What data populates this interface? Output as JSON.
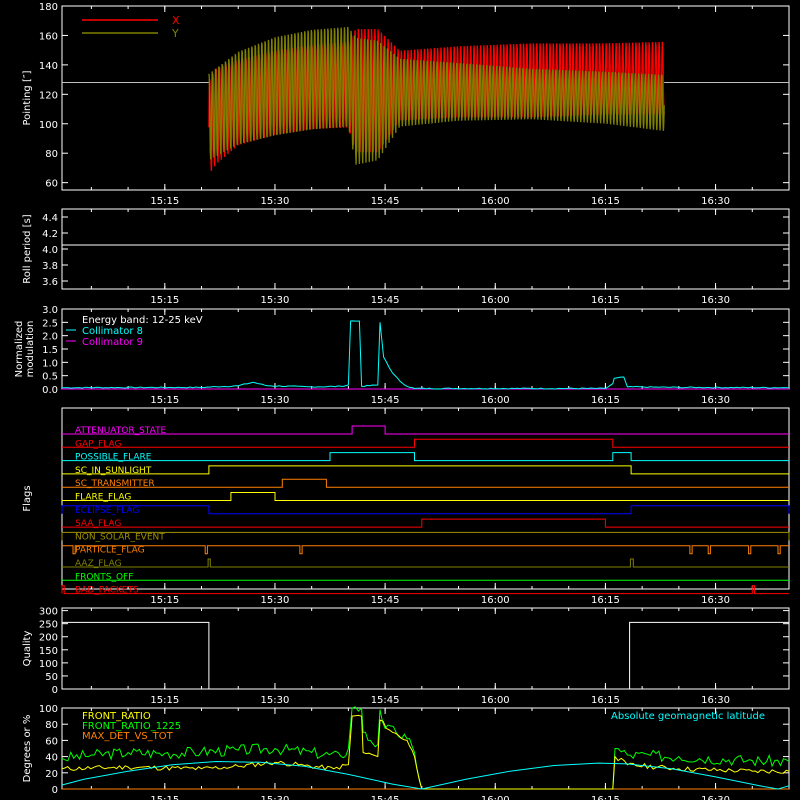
{
  "time_ticks": [
    "15:15",
    "15:30",
    "15:45",
    "16:00",
    "16:15",
    "16:30"
  ],
  "time_tick_values": [
    915,
    930,
    945,
    960,
    975,
    990
  ],
  "x_range": [
    901,
    1000
  ],
  "colors": {
    "bg": "#000000",
    "axis": "#ffffff",
    "red": "#ff0000",
    "olive": "#808000",
    "cyan": "#00ffff",
    "magenta": "#ff00ff",
    "yellow": "#ffff00",
    "green": "#00ff00",
    "orange": "#ff8000",
    "blue": "#0000ff",
    "olivegold": "#a09000"
  },
  "chart_data": [
    {
      "type": "line",
      "ylabel": "Pointing [″]",
      "ylim": [
        55,
        180
      ],
      "yticks": [
        60,
        80,
        100,
        120,
        140,
        160,
        180
      ],
      "legend": [
        {
          "name": "X",
          "color": "#ff0000"
        },
        {
          "name": "Y",
          "color": "#808000"
        }
      ],
      "reference_level": 128,
      "active_range": [
        921,
        983
      ],
      "series": [
        {
          "name": "X",
          "upper": [
            [
              921,
              130
            ],
            [
              922,
              138
            ],
            [
              925,
              144
            ],
            [
              930,
              150
            ],
            [
              935,
              154
            ],
            [
              940,
              156
            ],
            [
              941,
              165
            ],
            [
              944,
              165
            ],
            [
              947,
              150
            ],
            [
              955,
              153
            ],
            [
              965,
              155
            ],
            [
              975,
              155
            ],
            [
              983,
              156
            ]
          ],
          "lower": [
            [
              921,
              65
            ],
            [
              922,
              72
            ],
            [
              925,
              85
            ],
            [
              930,
              92
            ],
            [
              935,
              96
            ],
            [
              940,
              97
            ],
            [
              941,
              80
            ],
            [
              944,
              80
            ],
            [
              947,
              102
            ],
            [
              955,
              104
            ],
            [
              965,
              104
            ],
            [
              975,
              106
            ],
            [
              983,
              106
            ]
          ]
        },
        {
          "name": "Y",
          "upper": [
            [
              921,
              135
            ],
            [
              925,
              150
            ],
            [
              930,
              160
            ],
            [
              935,
              165
            ],
            [
              940,
              167
            ],
            [
              941,
              160
            ],
            [
              944,
              158
            ],
            [
              947,
              145
            ],
            [
              955,
              142
            ],
            [
              965,
              138
            ],
            [
              975,
              136
            ],
            [
              983,
              134
            ]
          ],
          "lower": [
            [
              921,
              75
            ],
            [
              925,
              86
            ],
            [
              930,
              92
            ],
            [
              935,
              96
            ],
            [
              940,
              98
            ],
            [
              941,
              72
            ],
            [
              944,
              75
            ],
            [
              947,
              98
            ],
            [
              955,
              102
            ],
            [
              965,
              103
            ],
            [
              975,
              100
            ],
            [
              983,
              95
            ]
          ]
        }
      ]
    },
    {
      "type": "line",
      "ylabel": "Roll period [s]",
      "ylim": [
        3.5,
        4.5
      ],
      "yticks": [
        3.6,
        3.8,
        4.0,
        4.2,
        4.4
      ],
      "series": [
        {
          "name": "",
          "points": [
            [
              901,
              4.05
            ],
            [
              1000,
              4.05
            ]
          ]
        }
      ]
    },
    {
      "type": "line",
      "ylabel": "Normalized modulation",
      "ylabel_lines": [
        "Normalized",
        "modulation"
      ],
      "ylim": [
        0,
        3.0
      ],
      "yticks": [
        0.0,
        0.5,
        1.0,
        1.5,
        2.0,
        2.5,
        3.0
      ],
      "legend": [
        {
          "name": "Energy band: 12-25 keV",
          "color": "#ffffff"
        },
        {
          "name": "Collimator 8",
          "color": "#00ffff"
        },
        {
          "name": "Collimator 9",
          "color": "#ff00ff"
        }
      ],
      "series": [
        {
          "name": "Collimator 8",
          "points": [
            [
              901,
              0.05
            ],
            [
              920,
              0.06
            ],
            [
              925,
              0.12
            ],
            [
              927,
              0.25
            ],
            [
              929,
              0.12
            ],
            [
              935,
              0.08
            ],
            [
              939,
              0.1
            ],
            [
              940,
              0.15
            ],
            [
              940.3,
              2.55
            ],
            [
              941.5,
              2.55
            ],
            [
              941.8,
              0.1
            ],
            [
              944,
              0.15
            ],
            [
              944.3,
              2.5
            ],
            [
              944.8,
              1.2
            ],
            [
              946,
              0.6
            ],
            [
              947,
              0.3
            ],
            [
              948,
              0.1
            ],
            [
              949,
              0.02
            ],
            [
              975,
              0.02
            ],
            [
              976,
              0.2
            ],
            [
              976.2,
              0.4
            ],
            [
              977.5,
              0.45
            ],
            [
              978,
              0.08
            ],
            [
              985,
              0.06
            ],
            [
              1000,
              0.05
            ]
          ]
        },
        {
          "name": "Collimator 9",
          "points": [
            [
              901,
              0.0
            ],
            [
              1000,
              0.0
            ]
          ]
        }
      ]
    },
    {
      "type": "table",
      "ylabel": "Flags",
      "flags": [
        {
          "name": "ATTENUATOR_STATE",
          "color": "#ff00ff",
          "on": [
            [
              940.5,
              945
            ]
          ]
        },
        {
          "name": "GAP_FLAG",
          "color": "#ff0000",
          "on": [
            [
              949,
              976
            ]
          ]
        },
        {
          "name": "POSSIBLE_FLARE",
          "color": "#00ffff",
          "on": [
            [
              937.5,
              949
            ],
            [
              976,
              978.5
            ]
          ]
        },
        {
          "name": "SC_IN_SUNLIGHT",
          "color": "#ffff00",
          "on": [
            [
              921,
              978.5
            ]
          ]
        },
        {
          "name": "SC_TRANSMITTER",
          "color": "#ff8000",
          "on": [
            [
              931,
              937
            ]
          ]
        },
        {
          "name": "FLARE_FLAG",
          "color": "#ffff00",
          "on": [
            [
              924,
              930
            ]
          ]
        },
        {
          "name": "ECLIPSE_FLAG",
          "color": "#0000ff",
          "on": [
            [
              901,
              921
            ],
            [
              978.5,
              1000
            ]
          ]
        },
        {
          "name": "SAA_FLAG",
          "color": "#ff0000",
          "on": [
            [
              950,
              975
            ]
          ]
        },
        {
          "name": "NON_SOLAR_EVENT",
          "color": "#a09000",
          "on": [
            [
              901,
              1000
            ]
          ]
        },
        {
          "name": "PARTICLE_FLAG",
          "color": "#ff8000",
          "on": [
            [
              901,
              1000
            ]
          ],
          "dips": [
            902.5,
            920.5,
            933.4,
            986.5,
            989,
            994.5,
            998.5
          ]
        },
        {
          "name": "AAZ_FLAG",
          "color": "#808000",
          "on": [
            [
              920.9,
              921.2
            ],
            [
              978.4,
              978.8
            ]
          ]
        },
        {
          "name": "FRONTS_OFF",
          "color": "#00ff00",
          "on": []
        },
        {
          "name": "BAD_PACKETS",
          "color": "#ff0000",
          "on": [
            [
              901,
              901.3
            ],
            [
              995,
              995.3
            ]
          ]
        }
      ]
    },
    {
      "type": "line",
      "ylabel": "Quality",
      "ylim": [
        0,
        310
      ],
      "yticks": [
        0,
        50,
        100,
        150,
        200,
        250,
        300
      ],
      "series": [
        {
          "name": "",
          "points": [
            [
              901,
              255
            ],
            [
              921,
              255
            ],
            [
              921,
              0
            ],
            [
              978.3,
              0
            ],
            [
              978.3,
              255
            ],
            [
              1000,
              255
            ]
          ]
        }
      ]
    },
    {
      "type": "line",
      "ylabel": "Degrees or %",
      "ylim": [
        0,
        100
      ],
      "yticks": [
        0,
        20,
        40,
        60,
        80,
        100
      ],
      "legend": [
        {
          "name": "FRONT_RATIO",
          "color": "#ffff00"
        },
        {
          "name": "FRONT_RATIO_1225",
          "color": "#00ff00"
        },
        {
          "name": "MAX_DET_VS_TOT",
          "color": "#ff8000"
        }
      ],
      "right_label": {
        "name": "Absolute geomagnetic latitude",
        "color": "#00ffff"
      },
      "series": [
        {
          "name": "FRONT_RATIO",
          "points": [
            [
              901,
              25
            ],
            [
              910,
              27
            ],
            [
              920,
              25
            ],
            [
              925,
              28
            ],
            [
              930,
              33
            ],
            [
              934,
              29
            ],
            [
              938,
              25
            ],
            [
              940,
              30
            ],
            [
              940.5,
              90
            ],
            [
              941.8,
              90
            ],
            [
              942,
              45
            ],
            [
              944,
              40
            ],
            [
              944.3,
              85
            ],
            [
              946,
              70
            ],
            [
              948,
              60
            ],
            [
              949,
              40
            ],
            [
              950,
              0
            ],
            [
              976,
              0
            ],
            [
              976.3,
              40
            ],
            [
              978,
              30
            ],
            [
              985,
              25
            ],
            [
              995,
              22
            ],
            [
              1000,
              22
            ]
          ]
        },
        {
          "name": "FRONT_RATIO_1225",
          "points": [
            [
              901,
              38
            ],
            [
              905,
              42
            ],
            [
              910,
              45
            ],
            [
              915,
              44
            ],
            [
              920,
              46
            ],
            [
              925,
              48
            ],
            [
              930,
              50
            ],
            [
              935,
              45
            ],
            [
              939,
              40
            ],
            [
              940,
              50
            ],
            [
              940.5,
              100
            ],
            [
              941.8,
              100
            ],
            [
              942,
              70
            ],
            [
              943,
              60
            ],
            [
              944,
              55
            ],
            [
              944.3,
              98
            ],
            [
              945,
              75
            ],
            [
              946.5,
              70
            ],
            [
              948,
              62
            ],
            [
              949,
              45
            ],
            [
              950,
              0
            ],
            [
              976,
              0
            ],
            [
              976.3,
              50
            ],
            [
              978,
              42
            ],
            [
              985,
              40
            ],
            [
              995,
              35
            ],
            [
              1000,
              34
            ]
          ]
        },
        {
          "name": "MAX_DET_VS_TOT",
          "points": [
            [
              901,
              0
            ],
            [
              1000,
              0
            ]
          ]
        },
        {
          "name": "Absolute geomagnetic latitude",
          "points": [
            [
              901,
              5
            ],
            [
              904,
              12
            ],
            [
              910,
              22
            ],
            [
              916,
              30
            ],
            [
              922,
              34
            ],
            [
              928,
              33
            ],
            [
              934,
              28
            ],
            [
              940,
              18
            ],
            [
              946,
              6
            ],
            [
              950,
              0
            ],
            [
              956,
              12
            ],
            [
              962,
              22
            ],
            [
              968,
              29
            ],
            [
              974,
              32
            ],
            [
              978,
              31
            ],
            [
              984,
              25
            ],
            [
              990,
              15
            ],
            [
              996,
              4
            ],
            [
              998.5,
              0
            ],
            [
              1000,
              4
            ]
          ]
        }
      ]
    }
  ]
}
